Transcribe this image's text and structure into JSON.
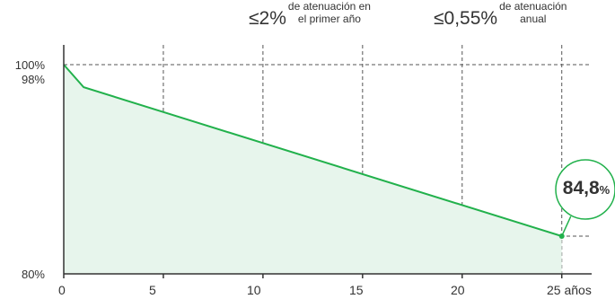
{
  "chart_data": {
    "type": "area",
    "x": [
      0,
      1,
      25
    ],
    "y": [
      100,
      98,
      84.8
    ],
    "xlim": [
      0,
      26.5
    ],
    "ylim": [
      80,
      100
    ],
    "x_ticks": [
      "0",
      "5",
      "10",
      "15",
      "20",
      "25 años"
    ],
    "x_tick_values": [
      0,
      5,
      10,
      15,
      20,
      25
    ],
    "y_ticks": [
      "100%",
      "98%",
      "80%"
    ],
    "grid": "dashed",
    "line_color": "#22b14c",
    "fill_color": "#e7f5ec",
    "endpoint_label": {
      "value": "84,8",
      "unit": "%"
    }
  },
  "annotations": [
    {
      "value": "≤2%",
      "line1": "de atenuación en",
      "line2": "el primer año"
    },
    {
      "value": "≤0,55%",
      "line1": "de atenuación",
      "line2": "anual"
    }
  ]
}
